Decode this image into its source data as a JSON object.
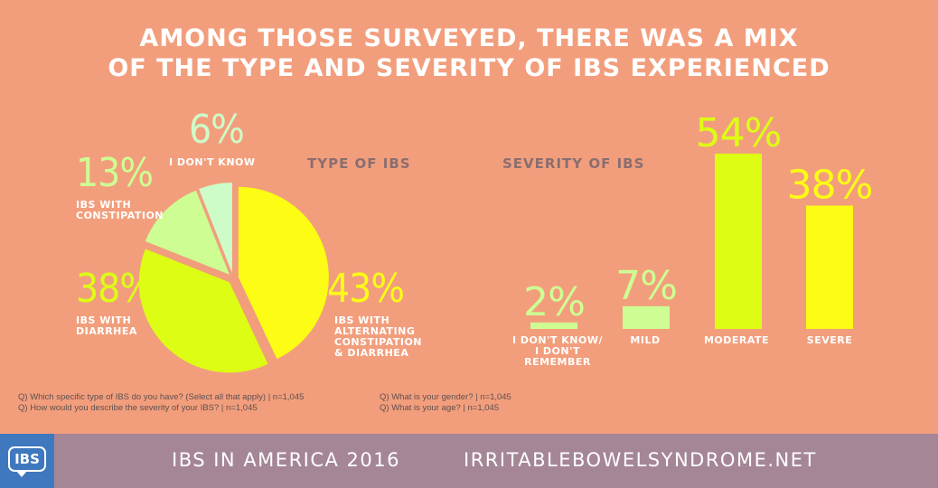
{
  "title_line1": "AMONG THOSE SURVEYED, THERE WAS A MIX",
  "title_line2": "OF THE TYPE AND SEVERITY OF IBS EXPERIENCED",
  "colors": {
    "background": "#F29E7C",
    "yellow": "#FCFC14",
    "lime": "#DDFD14",
    "light_green": "#CEFE93",
    "mint": "#CEFCC8",
    "section_label": "#8A6E70",
    "footer": "#A58697",
    "logo": "#3F78BE"
  },
  "chart_data": [
    {
      "type": "pie",
      "title": "TYPE OF IBS",
      "slices": [
        {
          "label": "IBS WITH ALTERNATING CONSTIPATION & DIARRHEA",
          "value": 43,
          "display": "43%",
          "color": "#FCFC14"
        },
        {
          "label": "IBS WITH DIARRHEA",
          "value": 38,
          "display": "38%",
          "color": "#DDFD14"
        },
        {
          "label": "IBS WITH CONSTIPATION",
          "value": 13,
          "display": "13%",
          "color": "#CEFE93"
        },
        {
          "label": "I DON'T KNOW",
          "value": 6,
          "display": "6%",
          "color": "#CEFCC8"
        }
      ]
    },
    {
      "type": "bar",
      "title": "SEVERITY OF IBS",
      "categories": [
        "I DON'T KNOW/\nI DON'T REMEMBER",
        "MILD",
        "MODERATE",
        "SEVERE"
      ],
      "values": [
        2,
        7,
        54,
        38
      ],
      "displays": [
        "2%",
        "7%",
        "54%",
        "38%"
      ],
      "colors": [
        "#CEFE93",
        "#CEFE93",
        "#DDFD14",
        "#FCFC14"
      ],
      "ylim": [
        0,
        54
      ]
    }
  ],
  "footnotes": {
    "q1": "Q) Which specific type of IBS do you have? (Select all that apply) | n=1,045",
    "q2": "Q) How would you describe the severity of your IBS? | n=1,045",
    "q3": "Q) What is your gender? | n=1,045",
    "q4": "Q) What is your age? | n=1,045"
  },
  "footer": {
    "logo_text": "IBS",
    "left_text": "IBS IN AMERICA 2016",
    "right_text": "IRRITABLEBOWELSYNDROME.NET"
  }
}
